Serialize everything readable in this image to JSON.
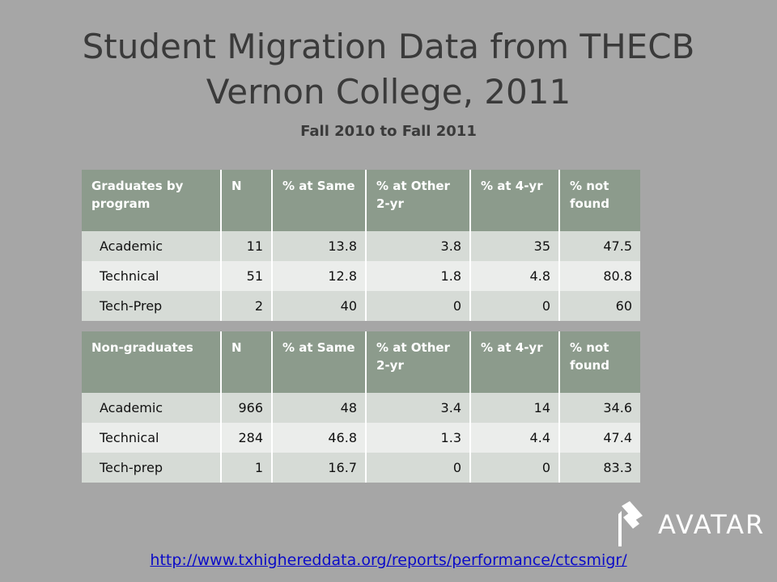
{
  "title_line1": "Student Migration Data from THECB",
  "title_line2": "Vernon College, 2011",
  "subtitle": "Fall 2010 to Fall 2011",
  "graduates": {
    "headers": [
      "Graduates by program",
      "N",
      "% at Same",
      "% at Other 2-yr",
      "% at 4-yr",
      "% not found"
    ],
    "rows": [
      [
        "Academic",
        "11",
        "13.8",
        "3.8",
        "35",
        "47.5"
      ],
      [
        "Technical",
        "51",
        "12.8",
        "1.8",
        "4.8",
        "80.8"
      ],
      [
        "Tech-Prep",
        "2",
        "40",
        "0",
        "0",
        "60"
      ]
    ]
  },
  "non_graduates": {
    "headers": [
      "Non-graduates",
      "N",
      "% at Same",
      "% at Other 2-yr",
      "% at 4-yr",
      "% not found"
    ],
    "rows": [
      [
        "Academic",
        "966",
        "48",
        "3.4",
        "14",
        "34.6"
      ],
      [
        "Technical",
        "284",
        "46.8",
        "1.3",
        "4.4",
        "47.4"
      ],
      [
        "Tech-prep",
        "1",
        "16.7",
        "0",
        "0",
        "83.3"
      ]
    ]
  },
  "logo": {
    "text": "AVATAR",
    "icon": "avatar-logo-icon"
  },
  "footer_link": "http://www.txhighereddata.org/reports/performance/ctcsmigr/",
  "colors": {
    "background": "#a6a6a6",
    "header": "#8c9b8c",
    "row_odd": "#d6dbd6",
    "row_even": "#ebedeb",
    "link": "#0b0bc8"
  }
}
